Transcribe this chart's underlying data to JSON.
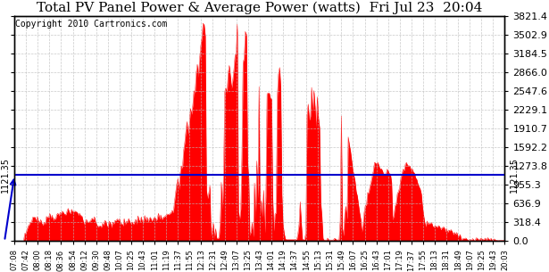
{
  "title": "Total PV Panel Power & Average Power (watts)  Fri Jul 23  20:04",
  "copyright": "Copyright 2010 Cartronics.com",
  "y_max": 3821.4,
  "y_min": 0.0,
  "y_ticks": [
    0.0,
    318.4,
    636.9,
    955.3,
    1273.8,
    1592.2,
    1910.7,
    2229.1,
    2547.6,
    2866.0,
    3184.5,
    3502.9,
    3821.4
  ],
  "avg_power": 1121.35,
  "avg_label": "1121.35",
  "x_labels": [
    "07:08",
    "07:42",
    "08:00",
    "08:18",
    "08:36",
    "08:54",
    "09:12",
    "09:30",
    "09:48",
    "10:07",
    "10:25",
    "10:43",
    "11:01",
    "11:19",
    "11:37",
    "11:55",
    "12:13",
    "12:31",
    "12:49",
    "13:07",
    "13:25",
    "13:43",
    "14:01",
    "14:19",
    "14:37",
    "14:55",
    "15:13",
    "15:31",
    "15:49",
    "16:07",
    "16:25",
    "16:43",
    "17:01",
    "17:19",
    "17:37",
    "17:55",
    "18:13",
    "18:31",
    "18:49",
    "19:07",
    "19:25",
    "19:43",
    "20:03"
  ],
  "fill_color": "#FF0000",
  "line_color": "#FF0000",
  "avg_line_color": "#0000CC",
  "grid_color": "#BBBBBB",
  "background_color": "#FFFFFF",
  "title_fontsize": 11,
  "tick_fontsize": 8,
  "copyright_fontsize": 7
}
